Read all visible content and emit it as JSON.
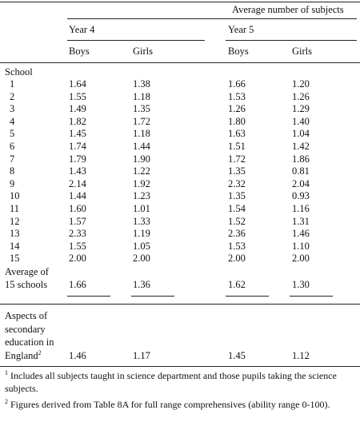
{
  "header": {
    "title": "Average number of subjects",
    "groups": [
      "Year 4",
      "Year 5"
    ],
    "columns": [
      "Boys",
      "Girls",
      "Boys",
      "Girls"
    ],
    "row_header": "School"
  },
  "rows": [
    [
      "1",
      "1.64",
      "1.38",
      "1.66",
      "1.20"
    ],
    [
      "2",
      "1.55",
      "1.18",
      "1.53",
      "1.26"
    ],
    [
      "3",
      "1.49",
      "1.35",
      "1.26",
      "1.29"
    ],
    [
      "4",
      "1.82",
      "1.72",
      "1.80",
      "1.40"
    ],
    [
      "5",
      "1.45",
      "1.18",
      "1.63",
      "1.04"
    ],
    [
      "6",
      "1.74",
      "1.44",
      "1.51",
      "1.42"
    ],
    [
      "7",
      "1.79",
      "1.90",
      "1.72",
      "1.86"
    ],
    [
      "8",
      "1.43",
      "1.22",
      "1.35",
      "0.81"
    ],
    [
      "9",
      "2.14",
      "1.92",
      "2.32",
      "2.04"
    ],
    [
      "10",
      "1.44",
      "1.23",
      "1.35",
      "0.93"
    ],
    [
      "11",
      "1.60",
      "1.01",
      "1.54",
      "1.16"
    ],
    [
      "12",
      "1.57",
      "1.33",
      "1.52",
      "1.31"
    ],
    [
      "13",
      "2.33",
      "1.19",
      "2.36",
      "1.46"
    ],
    [
      "14",
      "1.55",
      "1.05",
      "1.53",
      "1.10"
    ],
    [
      "15",
      "2.00",
      "2.00",
      "2.00",
      "2.00"
    ]
  ],
  "average": {
    "label": [
      "Average of",
      "15 schools"
    ],
    "values": [
      "1.66",
      "1.36",
      "1.62",
      "1.30"
    ]
  },
  "aspects": {
    "label": [
      "Aspects of",
      "secondary",
      "education in",
      "England"
    ],
    "note": "2",
    "values": [
      "1.46",
      "1.17",
      "1.45",
      "1.12"
    ]
  },
  "footnotes": [
    {
      "marker": "1",
      "text": "Includes all subjects taught in science department and those pupils taking the science subjects."
    },
    {
      "marker": "2",
      "text": "Figures derived from Table 8A for full range comprehensives (ability range 0-100)."
    }
  ]
}
